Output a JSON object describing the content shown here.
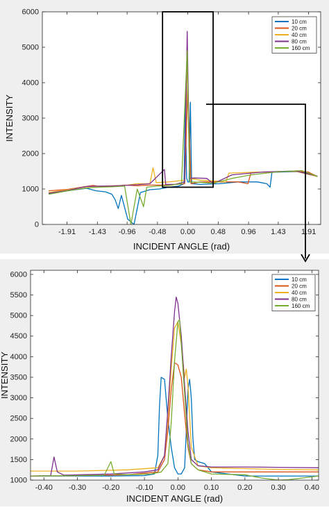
{
  "chart_data": [
    {
      "type": "line",
      "xlabel": "INCIDENT ANGLE (rad)",
      "ylabel": "INTENSITY",
      "xlim": [
        -2.3,
        2.1
      ],
      "ylim": [
        0,
        6000
      ],
      "xticks": [
        -1.91,
        -1.43,
        -0.96,
        -0.48,
        0.0,
        0.48,
        0.96,
        1.43,
        1.91
      ],
      "xtick_labels": [
        "-1.91",
        "-1.43",
        "-0.96",
        "-0.48",
        "0.00",
        "0.48",
        "0.96",
        "1.43",
        "1.91"
      ],
      "yticks": [
        0,
        1000,
        2000,
        3000,
        4000,
        5000,
        6000
      ],
      "ytick_labels": [
        "0",
        "1000",
        "2000",
        "3000",
        "4000",
        "5000",
        "6000"
      ],
      "legend_position": "top-right",
      "zoom_box": {
        "x": [
          -0.4,
          0.4
        ],
        "y": [
          1050,
          6000
        ]
      },
      "series": [
        {
          "name": "10 cm",
          "color": "#0072BD",
          "points": [
            [
              -2.2,
              860
            ],
            [
              -1.9,
              950
            ],
            [
              -1.6,
              1020
            ],
            [
              -1.45,
              950
            ],
            [
              -1.3,
              920
            ],
            [
              -1.2,
              850
            ],
            [
              -1.15,
              700
            ],
            [
              -1.1,
              450
            ],
            [
              -1.05,
              820
            ],
            [
              -0.95,
              150
            ],
            [
              -0.85,
              0
            ],
            [
              -0.75,
              900
            ],
            [
              -0.6,
              980
            ],
            [
              -0.45,
              1000
            ],
            [
              -0.3,
              1050
            ],
            [
              -0.15,
              1080
            ],
            [
              -0.06,
              1150
            ],
            [
              -0.04,
              3500
            ],
            [
              -0.02,
              1300
            ],
            [
              0.0,
              1200
            ],
            [
              0.02,
              1200
            ],
            [
              0.04,
              3450
            ],
            [
              0.06,
              1150
            ],
            [
              0.2,
              1130
            ],
            [
              0.5,
              1150
            ],
            [
              0.8,
              1200
            ],
            [
              1.1,
              1200
            ],
            [
              1.25,
              1150
            ],
            [
              1.3,
              1050
            ],
            [
              1.33,
              1470
            ],
            [
              1.5,
              1480
            ],
            [
              1.8,
              1490
            ],
            [
              2.05,
              1360
            ]
          ]
        },
        {
          "name": "20 cm",
          "color": "#D95319",
          "points": [
            [
              -2.2,
              950
            ],
            [
              -1.9,
              990
            ],
            [
              -1.5,
              1100
            ],
            [
              -1.35,
              1060
            ],
            [
              -1.2,
              1070
            ],
            [
              -1.0,
              1110
            ],
            [
              -0.8,
              1090
            ],
            [
              -0.6,
              1110
            ],
            [
              -0.4,
              1110
            ],
            [
              -0.2,
              1130
            ],
            [
              -0.05,
              1150
            ],
            [
              0.0,
              3900
            ],
            [
              0.05,
              1150
            ],
            [
              0.2,
              1200
            ],
            [
              0.5,
              1200
            ],
            [
              0.8,
              1200
            ],
            [
              0.95,
              1150
            ],
            [
              1.0,
              1470
            ],
            [
              1.3,
              1480
            ],
            [
              1.6,
              1500
            ],
            [
              1.9,
              1480
            ],
            [
              2.05,
              1350
            ]
          ]
        },
        {
          "name": "40 cm",
          "color": "#EDB120",
          "points": [
            [
              -2.2,
              900
            ],
            [
              -1.9,
              980
            ],
            [
              -1.6,
              1060
            ],
            [
              -1.4,
              1080
            ],
            [
              -1.2,
              1090
            ],
            [
              -1.0,
              1100
            ],
            [
              -0.8,
              1150
            ],
            [
              -0.6,
              1150
            ],
            [
              -0.55,
              1600
            ],
            [
              -0.5,
              1180
            ],
            [
              -0.3,
              1200
            ],
            [
              -0.05,
              1250
            ],
            [
              -0.01,
              4800
            ],
            [
              0.03,
              1300
            ],
            [
              0.2,
              1250
            ],
            [
              0.4,
              1230
            ],
            [
              0.6,
              1200
            ],
            [
              0.65,
              1450
            ],
            [
              1.0,
              1470
            ],
            [
              1.4,
              1490
            ],
            [
              1.7,
              1500
            ],
            [
              2.05,
              1350
            ]
          ]
        },
        {
          "name": "80 cm",
          "color": "#7E2F8E",
          "points": [
            [
              -2.2,
              880
            ],
            [
              -1.9,
              960
            ],
            [
              -1.6,
              1070
            ],
            [
              -1.4,
              1080
            ],
            [
              -1.2,
              1085
            ],
            [
              -1.0,
              1100
            ],
            [
              -0.8,
              1120
            ],
            [
              -0.6,
              1150
            ],
            [
              -0.37,
              1550
            ],
            [
              -0.35,
              1130
            ],
            [
              -0.2,
              1130
            ],
            [
              -0.05,
              1200
            ],
            [
              -0.01,
              5450
            ],
            [
              0.03,
              1300
            ],
            [
              0.1,
              1310
            ],
            [
              0.3,
              1300
            ],
            [
              0.4,
              1150
            ],
            [
              0.7,
              1400
            ],
            [
              1.2,
              1480
            ],
            [
              1.7,
              1510
            ],
            [
              2.05,
              1360
            ]
          ]
        },
        {
          "name": "160 cm",
          "color": "#77AC30",
          "points": [
            [
              -2.2,
              850
            ],
            [
              -1.9,
              950
            ],
            [
              -1.6,
              1030
            ],
            [
              -1.4,
              1050
            ],
            [
              -1.2,
              1060
            ],
            [
              -1.0,
              1080
            ],
            [
              -0.9,
              0
            ],
            [
              -0.8,
              1000
            ],
            [
              -0.7,
              500
            ],
            [
              -0.65,
              1050
            ],
            [
              -0.5,
              1080
            ],
            [
              -0.3,
              1100
            ],
            [
              -0.1,
              1150
            ],
            [
              -0.01,
              4900
            ],
            [
              0.03,
              1200
            ],
            [
              0.2,
              1190
            ],
            [
              0.4,
              1160
            ],
            [
              0.7,
              1300
            ],
            [
              1.0,
              1400
            ],
            [
              1.4,
              1480
            ],
            [
              1.8,
              1520
            ],
            [
              2.05,
              1350
            ]
          ]
        }
      ]
    },
    {
      "type": "line",
      "xlabel": "INCIDENT ANGLE (rad)",
      "ylabel": "INTENSITY",
      "xlim": [
        -0.44,
        0.42
      ],
      "ylim": [
        1000,
        6100
      ],
      "xticks": [
        -0.4,
        -0.3,
        -0.2,
        -0.1,
        0.0,
        0.1,
        0.2,
        0.3,
        0.4
      ],
      "xtick_labels": [
        "-0.40",
        "-0.30",
        "-0.20",
        "-0.10",
        "0.00",
        "0.10",
        "0.20",
        "0.30",
        "0.40"
      ],
      "yticks": [
        1000,
        1500,
        2000,
        2500,
        3000,
        3500,
        4000,
        4500,
        5000,
        5500,
        6000
      ],
      "ytick_labels": [
        "1000",
        "1500",
        "2000",
        "2500",
        "3000",
        "3500",
        "4000",
        "4500",
        "5000",
        "5500",
        "6000"
      ],
      "legend_position": "top-right",
      "series": [
        {
          "name": "10 cm",
          "color": "#0072BD",
          "points": [
            [
              -0.44,
              1100
            ],
            [
              -0.3,
              1100
            ],
            [
              -0.2,
              1100
            ],
            [
              -0.1,
              1110
            ],
            [
              -0.07,
              1150
            ],
            [
              -0.06,
              1600
            ],
            [
              -0.055,
              2800
            ],
            [
              -0.05,
              3500
            ],
            [
              -0.04,
              3450
            ],
            [
              -0.03,
              2500
            ],
            [
              -0.02,
              1800
            ],
            [
              -0.01,
              1300
            ],
            [
              0.0,
              1150
            ],
            [
              0.01,
              1150
            ],
            [
              0.02,
              1300
            ],
            [
              0.025,
              2200
            ],
            [
              0.03,
              3200
            ],
            [
              0.035,
              3450
            ],
            [
              0.04,
              3000
            ],
            [
              0.045,
              2000
            ],
            [
              0.05,
              1500
            ],
            [
              0.06,
              1450
            ],
            [
              0.08,
              1400
            ],
            [
              0.1,
              1200
            ],
            [
              0.2,
              1100
            ],
            [
              0.3,
              1100
            ],
            [
              0.42,
              1100
            ]
          ]
        },
        {
          "name": "20 cm",
          "color": "#D95319",
          "points": [
            [
              -0.44,
              1100
            ],
            [
              -0.3,
              1110
            ],
            [
              -0.15,
              1130
            ],
            [
              -0.06,
              1200
            ],
            [
              -0.04,
              1500
            ],
            [
              -0.03,
              2200
            ],
            [
              -0.02,
              3200
            ],
            [
              -0.01,
              3850
            ],
            [
              0.0,
              3800
            ],
            [
              0.01,
              3500
            ],
            [
              0.02,
              2600
            ],
            [
              0.03,
              1800
            ],
            [
              0.04,
              1400
            ],
            [
              0.06,
              1250
            ],
            [
              0.1,
              1200
            ],
            [
              0.2,
              1200
            ],
            [
              0.3,
              1200
            ],
            [
              0.42,
              1200
            ]
          ]
        },
        {
          "name": "40 cm",
          "color": "#EDB120",
          "points": [
            [
              -0.44,
              1220
            ],
            [
              -0.3,
              1220
            ],
            [
              -0.15,
              1250
            ],
            [
              -0.06,
              1300
            ],
            [
              -0.04,
              1600
            ],
            [
              -0.03,
              2500
            ],
            [
              -0.02,
              3700
            ],
            [
              -0.01,
              4700
            ],
            [
              0.0,
              4850
            ],
            [
              0.01,
              4300
            ],
            [
              0.02,
              3500
            ],
            [
              0.025,
              3700
            ],
            [
              0.03,
              3300
            ],
            [
              0.04,
              1800
            ],
            [
              0.06,
              1350
            ],
            [
              0.1,
              1300
            ],
            [
              0.2,
              1280
            ],
            [
              0.3,
              1260
            ],
            [
              0.42,
              1250
            ]
          ]
        },
        {
          "name": "80 cm",
          "color": "#7E2F8E",
          "points": [
            [
              -0.44,
              1100
            ],
            [
              -0.38,
              1110
            ],
            [
              -0.37,
              1560
            ],
            [
              -0.36,
              1200
            ],
            [
              -0.34,
              1120
            ],
            [
              -0.2,
              1150
            ],
            [
              -0.1,
              1200
            ],
            [
              -0.06,
              1250
            ],
            [
              -0.04,
              1600
            ],
            [
              -0.03,
              2700
            ],
            [
              -0.02,
              4000
            ],
            [
              -0.01,
              5100
            ],
            [
              -0.005,
              5450
            ],
            [
              0.0,
              5300
            ],
            [
              0.01,
              4500
            ],
            [
              0.02,
              3300
            ],
            [
              0.03,
              2200
            ],
            [
              0.04,
              1500
            ],
            [
              0.06,
              1350
            ],
            [
              0.1,
              1320
            ],
            [
              0.2,
              1320
            ],
            [
              0.3,
              1310
            ],
            [
              0.42,
              1300
            ]
          ]
        },
        {
          "name": "160 cm",
          "color": "#77AC30",
          "points": [
            [
              -0.44,
              1100
            ],
            [
              -0.3,
              1110
            ],
            [
              -0.22,
              1120
            ],
            [
              -0.2,
              1450
            ],
            [
              -0.19,
              1150
            ],
            [
              -0.15,
              1130
            ],
            [
              -0.08,
              1150
            ],
            [
              -0.05,
              1200
            ],
            [
              -0.03,
              1400
            ],
            [
              -0.02,
              2400
            ],
            [
              -0.01,
              3900
            ],
            [
              0.0,
              4850
            ],
            [
              0.005,
              4900
            ],
            [
              0.01,
              4300
            ],
            [
              0.02,
              3100
            ],
            [
              0.03,
              1900
            ],
            [
              0.04,
              1400
            ],
            [
              0.06,
              1250
            ],
            [
              0.1,
              1150
            ],
            [
              0.2,
              1130
            ],
            [
              0.25,
              1050
            ],
            [
              0.3,
              1000
            ],
            [
              0.33,
              1010
            ],
            [
              0.42,
              1100
            ]
          ]
        }
      ]
    }
  ]
}
